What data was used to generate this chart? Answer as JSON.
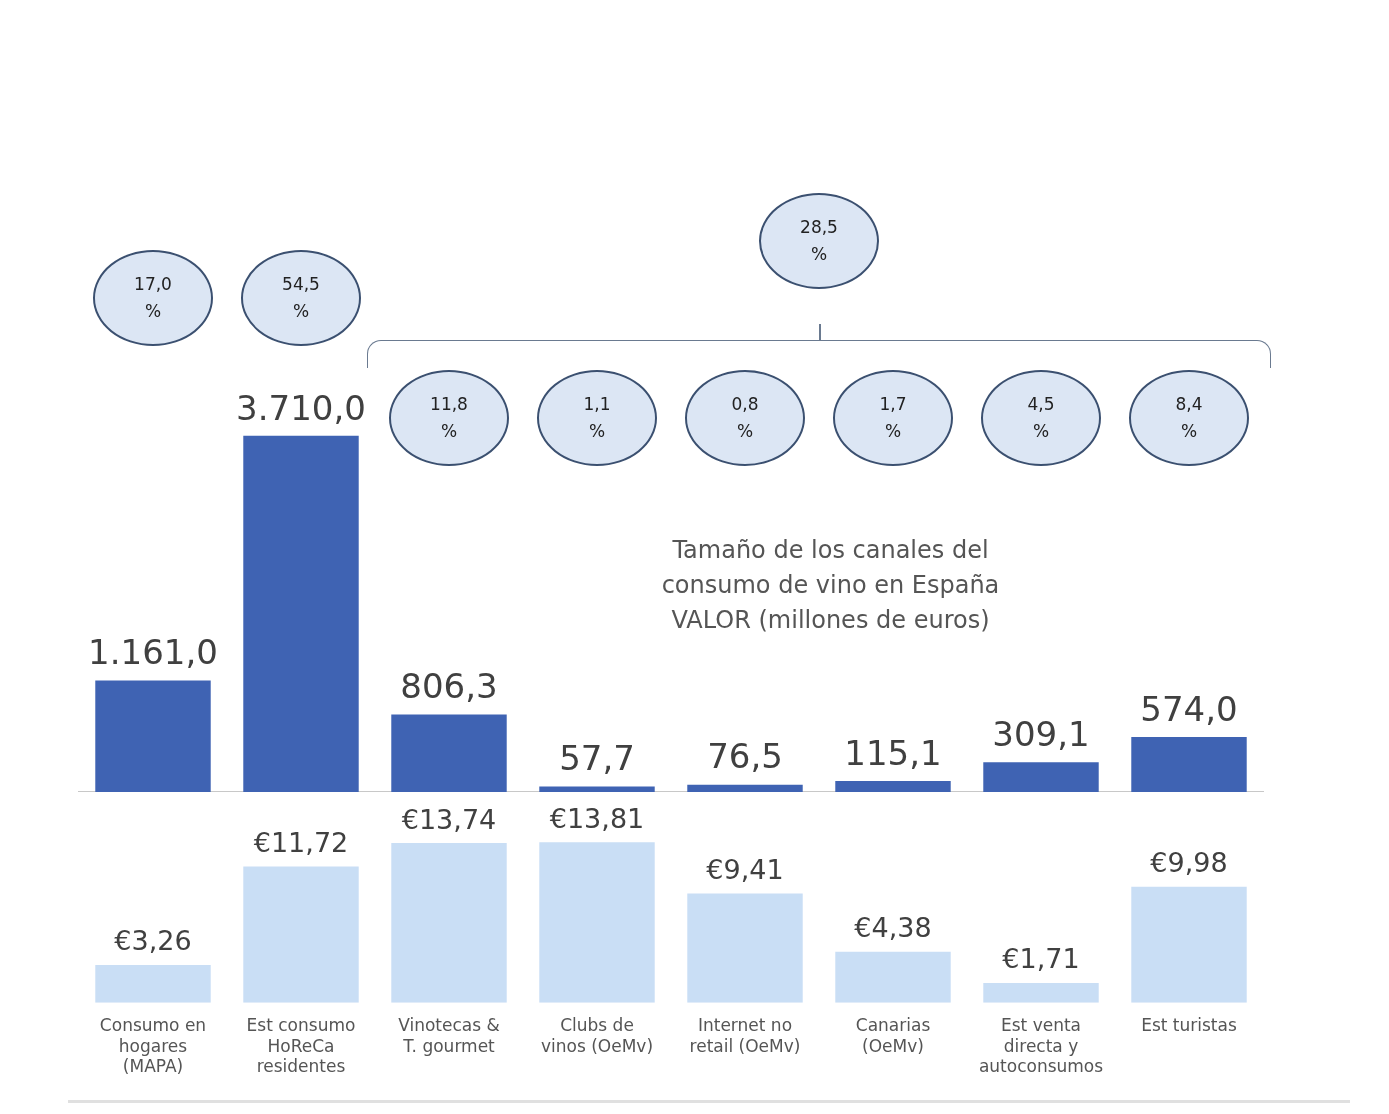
{
  "chart_data": [
    {
      "type": "bar",
      "title": "Tamaño de los canales del consumo de vino en España VALOR (millones de euros)",
      "categories": [
        null,
        null,
        null,
        null,
        null,
        null,
        null,
        null
      ],
      "values": [
        1161.0,
        3710.0,
        806.3,
        57.7,
        76.5,
        115.1,
        309.1,
        574.0
      ],
      "value_labels": [
        "1.161,0",
        "3.710,0",
        "806,3",
        "57,7",
        "76,5",
        "115,1",
        "309,1",
        "574,0"
      ],
      "color": "#3f63b3",
      "tick_labels": false,
      "grid": false,
      "legend": false,
      "annotations": [
        "17,0 %",
        "54,5 %",
        "11,8 %",
        "1,1 %",
        "0,8 %",
        "1,7 %",
        "4,5 %",
        "8,4 %",
        "28,5 %"
      ]
    },
    {
      "type": "bar",
      "categories": [
        "Consumo en hogares (MAPA)",
        "Est consumo HoReCa residentes",
        "Vinotecas & T. gourmet",
        "Clubs de vinos (OeMv)",
        "Internet no retail (OeMv)",
        "Canarias (OeMv)",
        "Est venta directa y autoconsumos",
        "Est turistas"
      ],
      "values": [
        3.26,
        11.72,
        13.74,
        13.81,
        9.41,
        4.38,
        1.71,
        9.98
      ],
      "value_labels": [
        "€3,26",
        "€11,72",
        "€13,74",
        "€13,81",
        "€9,41",
        "€4,38",
        "€1,71",
        "€9,98"
      ],
      "color": "#c9def5",
      "tick_labels": "x",
      "grid": false,
      "legend": false
    }
  ]
}
